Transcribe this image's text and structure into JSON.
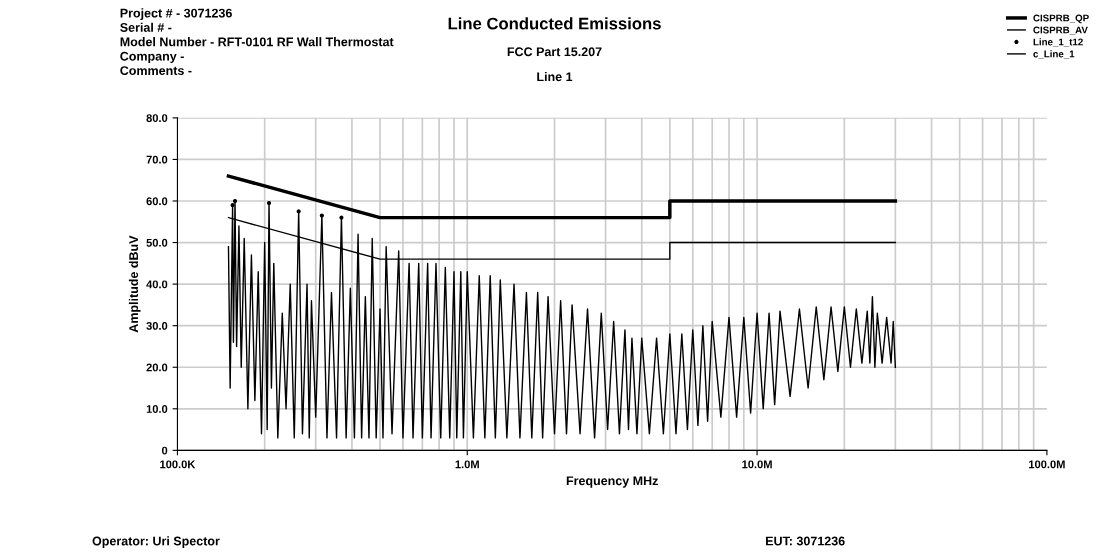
{
  "chart_data": {
    "type": "line",
    "title": "Line Conducted Emissions",
    "subtitle": "FCC Part 15.207",
    "xlabel": "Frequency MHz",
    "ylabel": "Amplitude dBuV",
    "log": "x",
    "xlim": [
      100000,
      100000000
    ],
    "xticks": [
      {
        "value": 100000,
        "label": "100.0K"
      },
      {
        "value": 1000000,
        "label": "1.0M"
      },
      {
        "value": 10000000,
        "label": "10.0M"
      },
      {
        "value": 100000000,
        "label": "100.0M"
      }
    ],
    "ylim": [
      0,
      80
    ],
    "yticks": [
      {
        "value": 0,
        "label": "0"
      },
      {
        "value": 10,
        "label": "10.0"
      },
      {
        "value": 20,
        "label": "20.0"
      },
      {
        "value": 30,
        "label": "30.0"
      },
      {
        "value": 40,
        "label": "40.0"
      },
      {
        "value": 50,
        "label": "50.0"
      },
      {
        "value": 60,
        "label": "60.0"
      },
      {
        "value": 70,
        "label": "70.0"
      },
      {
        "value": 80,
        "label": "80.0"
      }
    ],
    "grid": true,
    "legend": "top right",
    "annotations": [
      "Line 1",
      "Project # - 3071236\nSerial # -\nModel Number - RFT-0101 RF Wall Thermostat\nCompany -\nComments -",
      "Operator: Uri Spector",
      "EUT: 3071236"
    ],
    "series": [
      {
        "name": "CISPRB_QP",
        "color": "#000000",
        "x": [
          150000,
          500000,
          5000000,
          5000000,
          30000000
        ],
        "values": [
          66,
          56,
          56,
          60,
          60
        ]
      },
      {
        "name": "CISPRB_AV",
        "color": "#000000",
        "x": [
          150000,
          500000,
          5000000,
          5000000,
          30000000
        ],
        "values": [
          56,
          46,
          46,
          50,
          50
        ]
      },
      {
        "name": "Line_1_t12",
        "type": "scatter",
        "marker": "circle",
        "color": "#000000",
        "x": [
          155000,
          158000,
          207000,
          262000,
          315000,
          368000
        ],
        "values": [
          59,
          60,
          59.5,
          57.5,
          56.5,
          56
        ]
      },
      {
        "name": "c_Line_1",
        "color": "#000000",
        "x": [
          150000.0,
          152000.0,
          155000.0,
          156000.0,
          158000.0,
          160000.0,
          163000.0,
          166000.0,
          170000.0,
          175000.0,
          180000.0,
          185000.0,
          190000.0,
          195000.0,
          200000.0,
          204000.0,
          207000.0,
          211000.0,
          215000.0,
          222000.0,
          230000.0,
          237000.0,
          245000.0,
          253000.0,
          262000.0,
          270000.0,
          280000.0,
          285000.0,
          290000.0,
          300000.0,
          315000.0,
          328000.0,
          340000.0,
          354000.0,
          368000.0,
          382000.0,
          395000.0,
          408000.0,
          420000.0,
          432000.0,
          445000.0,
          458000.0,
          470000.0,
          485000.0,
          500000.0,
          512000.0,
          525000.0,
          550000.0,
          580000.0,
          600000.0,
          630000.0,
          650000.0,
          680000.0,
          700000.0,
          730000.0,
          750000.0,
          780000.0,
          810000.0,
          840000.0,
          870000.0,
          900000.0,
          920000.0,
          950000.0,
          970000.0,
          1000000.0,
          1050000.0,
          1100000.0,
          1150000.0,
          1200000.0,
          1250000.0,
          1300000.0,
          1370000.0,
          1450000.0,
          1520000.0,
          1600000.0,
          1670000.0,
          1750000.0,
          1820000.0,
          1900000.0,
          2000000.0,
          2100000.0,
          2200000.0,
          2300000.0,
          2450000.0,
          2600000.0,
          2750000.0,
          2900000.0,
          3050000.0,
          3200000.0,
          3350000.0,
          3500000.0,
          3600000.0,
          3700000.0,
          3850000.0,
          4000000.0,
          4250000.0,
          4500000.0,
          4750000.0,
          5000000.0,
          5250000.0,
          5500000.0,
          5750000.0,
          6000000.0,
          6250000.0,
          6500000.0,
          6750000.0,
          7000000.0,
          7500000.0,
          8000000.0,
          8500000.0,
          9000000.0,
          9500000.0,
          10000000.0,
          10500000.0,
          11000000.0,
          11500000.0,
          12000000.0,
          13000000.0,
          14000000.0,
          15000000.0,
          16000000.0,
          17000000.0,
          18000000.0,
          19000000.0,
          20000000.0,
          21000000.0,
          22000000.0,
          23000000.0,
          24000000.0,
          24500000.0,
          25000000.0,
          25500000.0,
          26000000.0,
          27000000.0,
          28000000.0,
          29000000.0,
          29500000.0,
          30000000.0
        ],
        "values": [
          49,
          15,
          59,
          26,
          60,
          25,
          54,
          20,
          51,
          10,
          47,
          12,
          43,
          4,
          50,
          5,
          59.5,
          15,
          45,
          3,
          33,
          10,
          40,
          3,
          57.5,
          4,
          40,
          3,
          36,
          8,
          56.5,
          3,
          38,
          3,
          56,
          3,
          39,
          3,
          52,
          3,
          37,
          3,
          51,
          3,
          34,
          3,
          49,
          4,
          48,
          3,
          45,
          3,
          45,
          3,
          45,
          3,
          45,
          3,
          44,
          3,
          43,
          3,
          43,
          3,
          43,
          3,
          42,
          3,
          42,
          3,
          41,
          3,
          40,
          3,
          38,
          3,
          38,
          3,
          37,
          4,
          36,
          4,
          35,
          4,
          34,
          3,
          33,
          5,
          31,
          4,
          29,
          5,
          27,
          4,
          27,
          4,
          27,
          4,
          28,
          4,
          28,
          5,
          29,
          6,
          30,
          7,
          31,
          8,
          32,
          8,
          32,
          9,
          33,
          10,
          33,
          11,
          33.5,
          13,
          34,
          15,
          34.5,
          17,
          34.5,
          19,
          34.5,
          20,
          34,
          21,
          33.5,
          21,
          37,
          20,
          33,
          21,
          32,
          21,
          31,
          20
        ]
      }
    ]
  }
}
